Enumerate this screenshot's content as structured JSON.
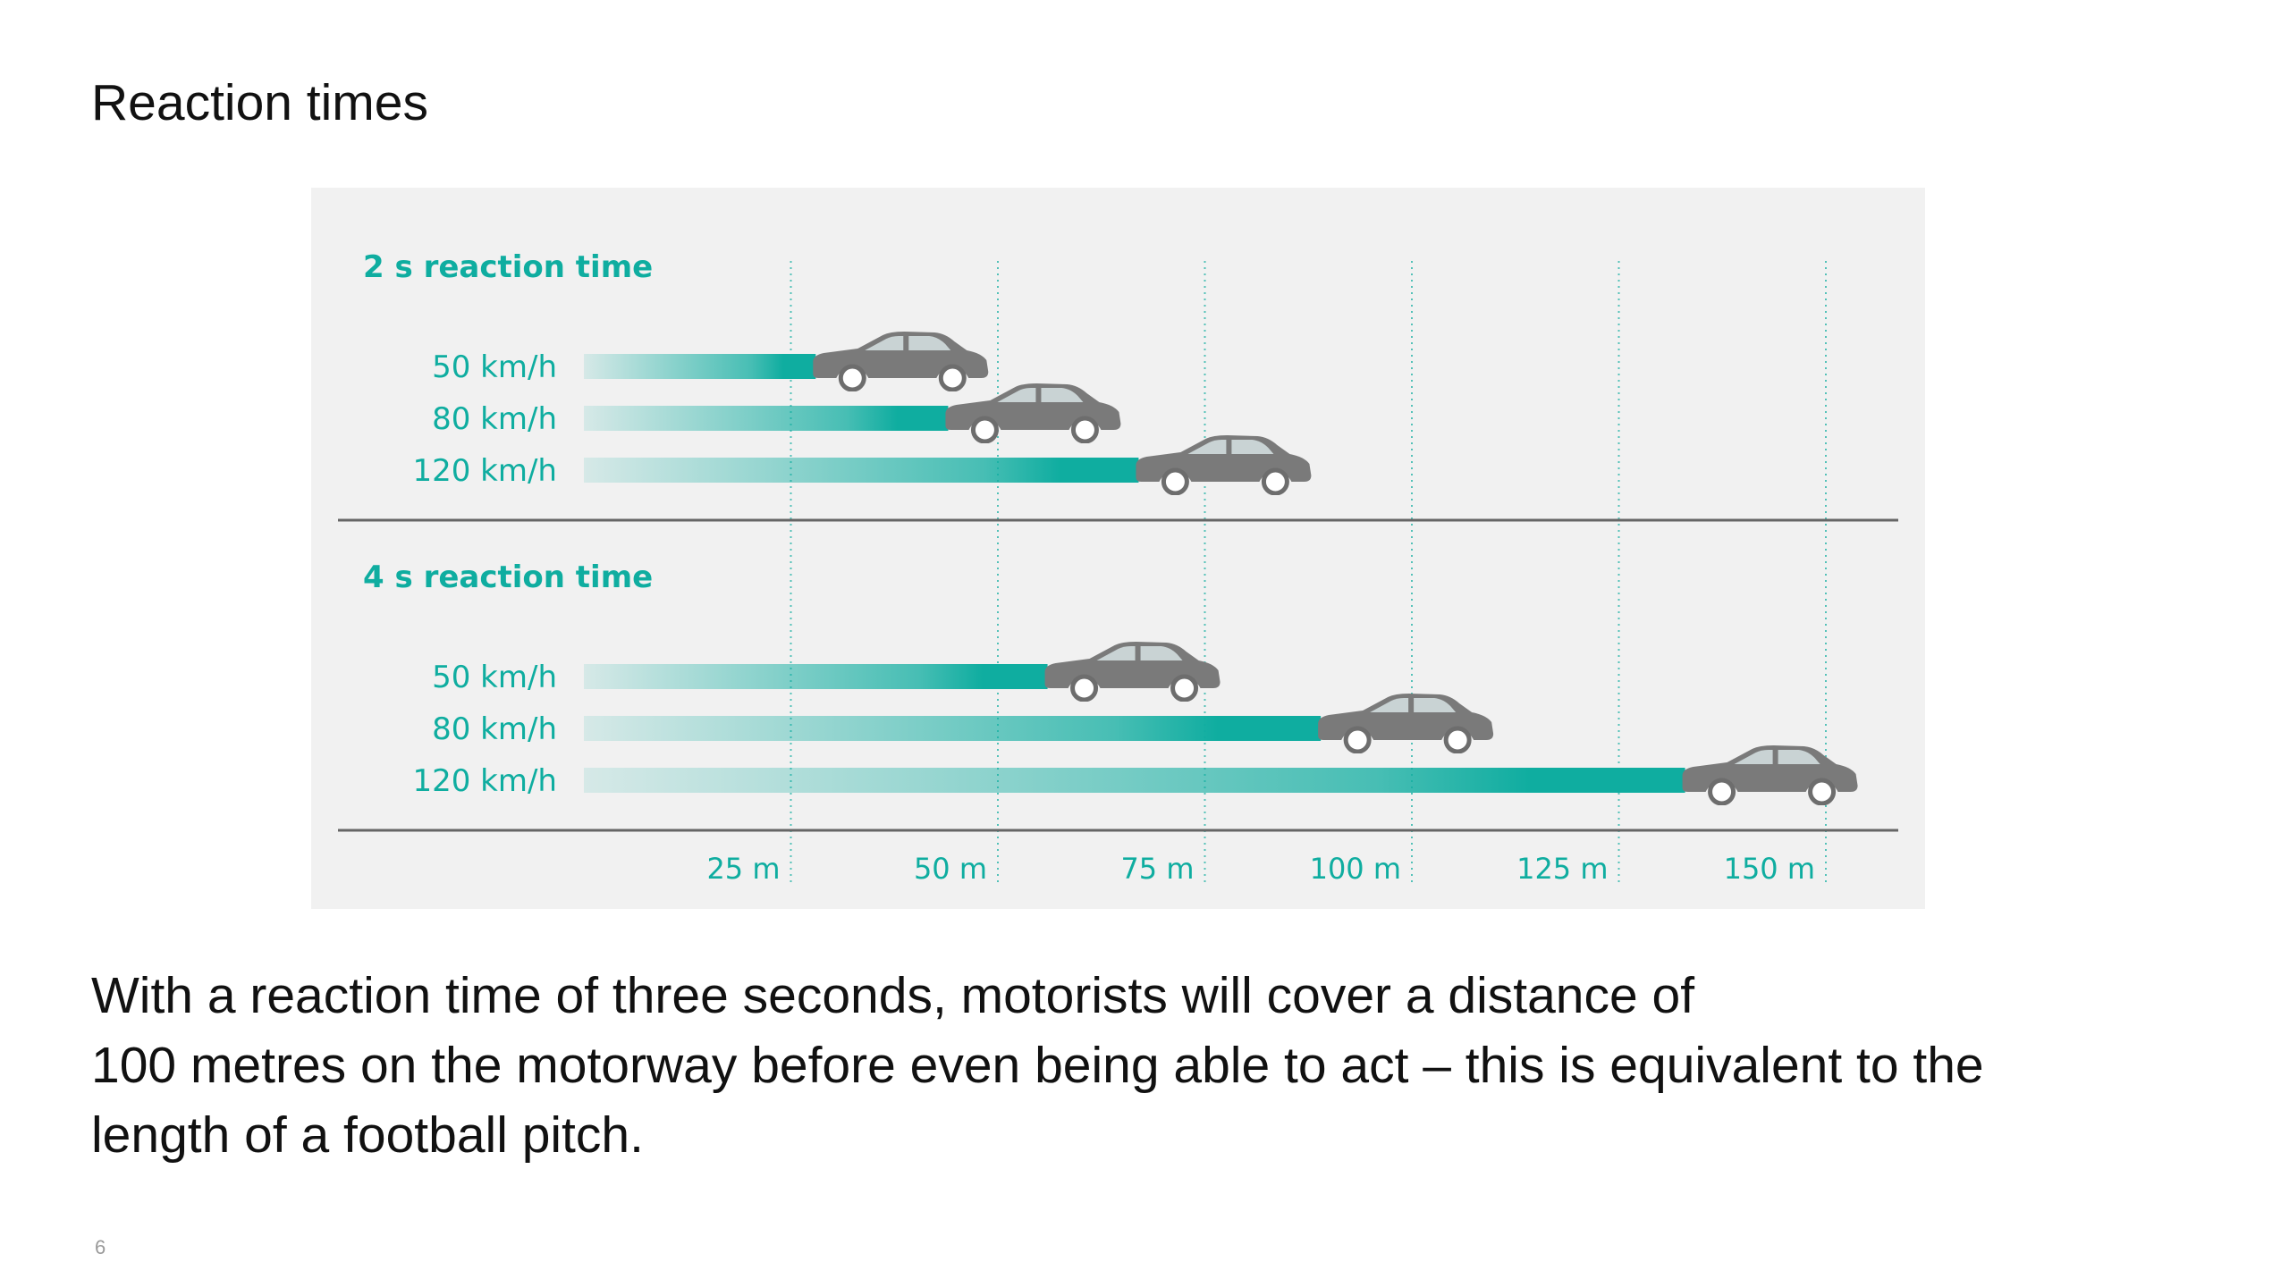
{
  "slide": {
    "title": "Reaction times",
    "body_lines": [
      "With a reaction time of three seconds, motorists will cover a distance of",
      "100 metres on the motorway before even being able to act – this is equivalent to the",
      "length of a football pitch."
    ],
    "page_number": "6"
  },
  "colors": {
    "accent": "#0fada0",
    "car": "#777777",
    "panel_bg": "#f1f1f1",
    "axis": "#666666"
  },
  "chart_data": {
    "type": "bar",
    "orientation": "horizontal",
    "xlim": [
      0,
      150
    ],
    "x_ticks": [
      25,
      50,
      75,
      100,
      125,
      150
    ],
    "x_tick_labels": [
      "25 m",
      "50 m",
      "75 m",
      "100 m",
      "125 m",
      "150 m"
    ],
    "grid": "vertical dotted",
    "groups": [
      {
        "title": "2 s reaction time",
        "bars": [
          {
            "label": "50 km/h",
            "value": 28
          },
          {
            "label": "80 km/h",
            "value": 44
          },
          {
            "label": "120 km/h",
            "value": 67
          }
        ]
      },
      {
        "title": "4 s reaction time",
        "bars": [
          {
            "label": "50 km/h",
            "value": 56
          },
          {
            "label": "80 km/h",
            "value": 89
          },
          {
            "label": "120 km/h",
            "value": 133
          }
        ]
      }
    ]
  }
}
